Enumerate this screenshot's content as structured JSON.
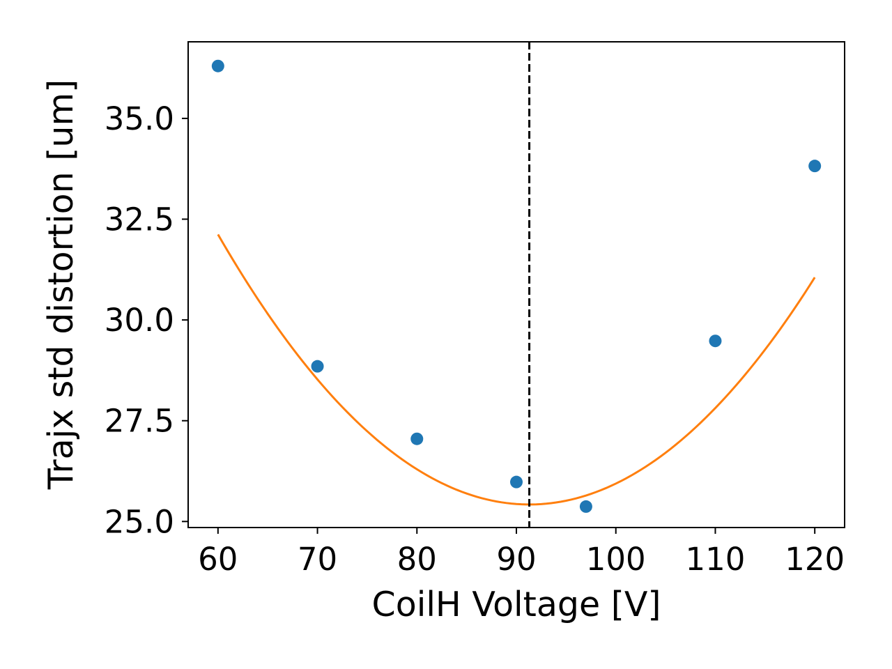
{
  "chart_data": {
    "type": "scatter",
    "title": "",
    "xlabel": "CoilH Voltage [V]",
    "ylabel": "Trajx std distortion [um]",
    "xlim": [
      57,
      123
    ],
    "ylim": [
      24.85,
      36.9
    ],
    "xticks": [
      60,
      70,
      80,
      90,
      100,
      110,
      120
    ],
    "yticks": [
      25.0,
      27.5,
      30.0,
      32.5,
      35.0
    ],
    "grid": false,
    "legend": "none",
    "series": [
      {
        "type": "scatter",
        "color": "#1f77b4",
        "x": [
          60,
          70,
          80,
          90,
          97,
          110,
          120
        ],
        "y": [
          36.3,
          28.85,
          27.05,
          25.98,
          25.37,
          29.48,
          33.82
        ]
      },
      {
        "type": "line",
        "color": "#ff7f0e",
        "fit": "quadratic",
        "x_range": [
          60,
          120
        ],
        "coefficients": [
          0.006838,
          -1.2486,
          82.42
        ]
      }
    ],
    "vline": {
      "x": 91.3,
      "style": "dashed",
      "color": "#000000"
    }
  }
}
